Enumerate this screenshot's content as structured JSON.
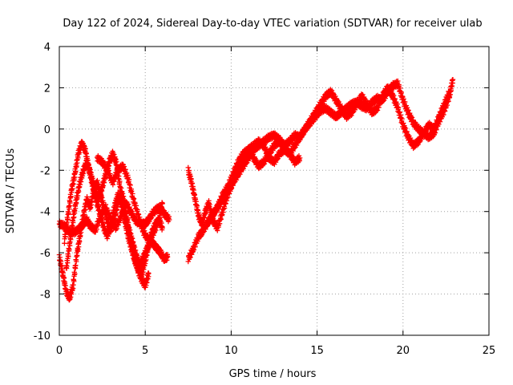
{
  "chart_data": {
    "type": "scatter",
    "title": "Day 122 of 2024, Sidereal Day-to-day VTEC variation (SDTVAR) for receiver ulab",
    "xlabel": "GPS time / hours",
    "ylabel": "SDTVAR / TECUs",
    "xlim": [
      0,
      25
    ],
    "ylim": [
      -10,
      4
    ],
    "xticks": [
      0,
      5,
      10,
      15,
      20,
      25
    ],
    "yticks": [
      -10,
      -8,
      -6,
      -4,
      -2,
      0,
      2,
      4
    ],
    "xtick_labels": [
      "0",
      "5",
      "10",
      "15",
      "20",
      "25"
    ],
    "ytick_labels": [
      "-10",
      "-8",
      "-6",
      "-4",
      "-2",
      "0",
      "2",
      "4"
    ],
    "grid": true,
    "marker": "+",
    "color": "#ff0000",
    "series": [
      {
        "name": "trace-1",
        "x": [
          0.0,
          0.3,
          0.6,
          0.9,
          1.2,
          1.4,
          1.6,
          1.8,
          2.1,
          2.4,
          2.7,
          3.0,
          3.3,
          3.6,
          3.9,
          4.2,
          4.5,
          4.8,
          5.0,
          5.2,
          5.5,
          5.8,
          6.1,
          6.4
        ],
        "y": [
          -4.6,
          -4.7,
          -5.0,
          -5.0,
          -4.8,
          -4.6,
          -4.4,
          -4.7,
          -4.9,
          -4.2,
          -3.8,
          -4.4,
          -4.8,
          -4.2,
          -3.6,
          -4.1,
          -4.5,
          -4.6,
          -4.6,
          -4.4,
          -4.0,
          -3.8,
          -4.1,
          -4.4
        ]
      },
      {
        "name": "trace-2",
        "x": [
          0.0,
          0.2,
          0.4,
          0.6,
          0.8,
          1.0,
          1.2,
          1.4,
          1.6,
          1.8,
          2.0,
          2.2,
          2.4,
          2.6,
          2.8,
          3.0,
          3.2,
          3.4,
          3.6,
          3.8,
          4.0,
          4.2,
          4.4,
          4.6,
          4.8,
          5.0,
          5.2
        ],
        "y": [
          -6.2,
          -7.0,
          -7.9,
          -8.2,
          -7.6,
          -6.2,
          -5.2,
          -4.2,
          -3.4,
          -3.8,
          -3.0,
          -2.6,
          -3.2,
          -3.8,
          -4.5,
          -4.9,
          -4.4,
          -3.6,
          -3.0,
          -3.6,
          -4.6,
          -5.6,
          -6.3,
          -6.9,
          -7.3,
          -7.6,
          -7.0
        ]
      },
      {
        "name": "trace-3",
        "x": [
          0.3,
          0.5,
          0.7,
          0.9,
          1.1,
          1.3,
          1.5,
          1.7,
          1.9,
          2.1,
          2.3,
          2.5,
          2.7,
          2.9,
          3.1,
          3.3,
          3.5,
          3.7,
          3.9,
          4.1,
          4.3,
          4.5,
          4.7,
          4.9,
          5.1,
          5.3,
          5.5,
          5.7,
          5.9,
          6.1,
          6.3
        ],
        "y": [
          -5.4,
          -4.2,
          -3.0,
          -2.2,
          -1.2,
          -0.7,
          -1.0,
          -1.8,
          -2.4,
          -3.0,
          -3.4,
          -2.8,
          -2.2,
          -1.6,
          -1.2,
          -1.6,
          -2.6,
          -3.8,
          -4.6,
          -5.0,
          -5.6,
          -6.2,
          -6.6,
          -6.2,
          -5.8,
          -5.4,
          -5.6,
          -5.8,
          -6.0,
          -6.3,
          -6.2
        ]
      },
      {
        "name": "trace-4",
        "x": [
          0.4,
          0.6,
          0.8,
          1.0,
          1.2,
          1.4,
          1.6,
          1.8,
          2.0,
          2.2,
          2.4,
          2.6,
          2.8,
          3.0,
          3.2,
          3.4,
          3.6,
          3.8,
          4.0,
          4.2,
          4.4,
          4.6,
          4.8,
          5.0,
          5.2,
          5.4,
          5.6,
          5.8,
          6.0
        ],
        "y": [
          -6.8,
          -5.6,
          -4.4,
          -3.4,
          -2.6,
          -2.0,
          -1.6,
          -2.2,
          -3.0,
          -3.6,
          -4.2,
          -4.8,
          -5.2,
          -4.6,
          -3.8,
          -3.2,
          -3.6,
          -4.4,
          -5.2,
          -5.8,
          -6.4,
          -6.8,
          -7.0,
          -6.4,
          -5.6,
          -5.0,
          -4.6,
          -4.4,
          -4.8
        ]
      },
      {
        "name": "trace-5",
        "x": [
          2.2,
          2.5,
          2.8,
          3.1,
          3.4,
          3.7,
          4.0,
          4.3,
          4.6,
          4.9,
          5.2,
          5.5,
          5.8,
          6.0
        ],
        "y": [
          -1.4,
          -1.6,
          -2.0,
          -2.6,
          -2.0,
          -1.8,
          -2.4,
          -3.4,
          -4.2,
          -5.0,
          -5.4,
          -5.0,
          -4.4,
          -3.6
        ]
      },
      {
        "name": "trace-6",
        "x": [
          7.5,
          7.8,
          8.1,
          8.3,
          8.6,
          8.9,
          9.2,
          9.5,
          9.8,
          10.1,
          10.4,
          10.7,
          11.0,
          11.3,
          11.6,
          11.9,
          12.2,
          12.5,
          12.8,
          13.1,
          13.4,
          13.7,
          14.0,
          14.3,
          14.6,
          14.9,
          15.2,
          15.5,
          15.8,
          16.1,
          16.4,
          16.7,
          17.0,
          17.3,
          17.6,
          17.9,
          18.2,
          18.5,
          18.8,
          19.1,
          19.4,
          19.7,
          20.0,
          20.3,
          20.6,
          20.9,
          21.2,
          21.5,
          21.8,
          22.1,
          22.4,
          22.7,
          22.9
        ],
        "y": [
          -6.3,
          -5.8,
          -5.2,
          -5.0,
          -4.6,
          -4.2,
          -3.8,
          -3.4,
          -3.0,
          -2.6,
          -2.2,
          -1.8,
          -1.4,
          -1.0,
          -0.8,
          -0.6,
          -0.4,
          -0.3,
          -0.5,
          -0.8,
          -0.6,
          -0.3,
          -0.4,
          0.0,
          0.3,
          0.6,
          0.9,
          1.0,
          0.8,
          0.6,
          0.8,
          1.0,
          1.2,
          1.3,
          1.1,
          1.0,
          1.3,
          1.5,
          1.4,
          1.8,
          2.1,
          2.2,
          1.4,
          0.8,
          0.3,
          0.0,
          -0.2,
          -0.4,
          -0.2,
          0.4,
          0.9,
          1.6,
          2.4
        ]
      },
      {
        "name": "trace-7",
        "x": [
          7.5,
          7.7,
          7.9,
          8.1,
          8.3,
          8.5,
          8.7,
          8.9,
          9.2,
          9.5,
          9.8,
          10.1,
          10.4,
          10.7,
          11.0,
          11.3,
          11.6,
          11.9,
          12.2,
          12.5,
          12.8,
          13.1,
          13.4,
          13.7,
          14.0
        ],
        "y": [
          -2.0,
          -2.6,
          -3.4,
          -4.2,
          -4.6,
          -4.0,
          -3.6,
          -4.4,
          -4.8,
          -4.0,
          -3.2,
          -2.6,
          -2.0,
          -1.5,
          -1.0,
          -0.8,
          -0.6,
          -0.8,
          -1.4,
          -1.6,
          -1.2,
          -1.0,
          -1.2,
          -1.6,
          -1.4
        ]
      },
      {
        "name": "trace-8",
        "x": [
          8.6,
          8.9,
          9.2,
          9.5,
          9.8,
          10.1,
          10.4,
          10.7,
          11.0,
          11.3,
          11.6,
          11.9,
          12.2,
          12.5,
          12.8,
          13.1,
          13.4,
          13.7,
          14.0,
          14.3,
          14.6,
          14.9,
          15.2,
          15.5,
          15.8,
          16.1,
          16.4,
          16.7,
          17.0,
          17.3,
          17.6,
          17.9,
          18.2,
          18.5,
          18.8,
          19.1,
          19.4,
          19.7,
          20.0,
          20.3,
          20.6,
          20.9,
          21.2,
          21.5,
          21.8,
          22.1,
          22.4,
          22.7
        ],
        "y": [
          -4.6,
          -4.2,
          -3.8,
          -3.2,
          -2.8,
          -2.2,
          -1.6,
          -1.2,
          -1.0,
          -1.4,
          -1.8,
          -1.6,
          -1.2,
          -0.8,
          -0.6,
          -0.9,
          -1.2,
          -0.8,
          -0.4,
          0.0,
          0.4,
          0.8,
          1.2,
          1.6,
          1.8,
          1.4,
          1.0,
          0.6,
          0.8,
          1.2,
          1.6,
          1.2,
          0.8,
          1.0,
          1.6,
          2.0,
          1.6,
          1.0,
          0.2,
          -0.4,
          -0.8,
          -0.6,
          -0.2,
          0.2,
          0.0,
          0.6,
          1.2,
          1.8
        ]
      }
    ]
  }
}
